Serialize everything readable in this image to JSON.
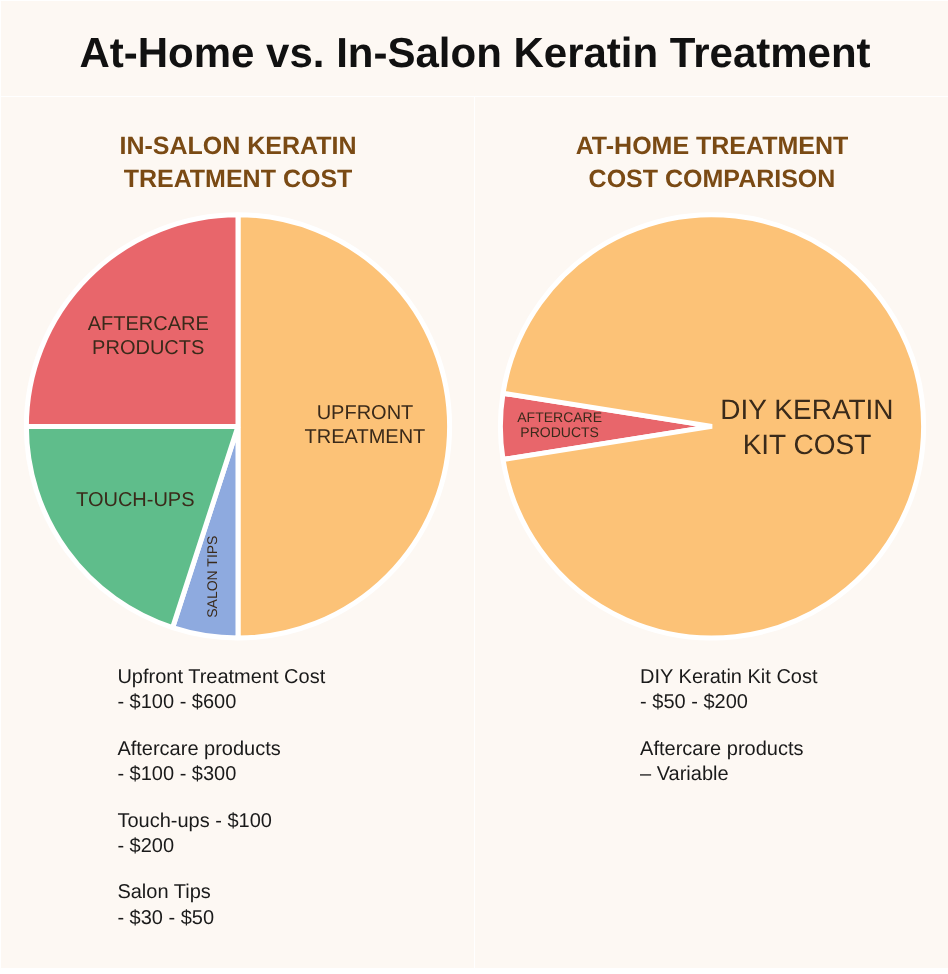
{
  "chart_data": [
    {
      "type": "pie",
      "title": "At-Home vs. In-Salon Keratin Treatment",
      "subtitle": "IN-SALON KERATIN\nTREATMENT COST",
      "categories": [
        "UPFRONT\nTREATMENT",
        "SALON TIPS",
        "TOUCH-UPS",
        "AFTERCARE\nPRODUCTS"
      ],
      "values": [
        50,
        5,
        20,
        25
      ],
      "colors": [
        "#fcc277",
        "#8eaadf",
        "#5fbd8b",
        "#e8666b"
      ],
      "annotations": [
        "Upfront Treatment Cost\n- $100 - $600",
        "Aftercare products\n - $100 - $300",
        "Touch-ups - $100\n- $200",
        "Salon Tips\n- $30 - $50"
      ]
    },
    {
      "type": "pie",
      "subtitle": "AT-HOME TREATMENT\nCOST COMPARISON",
      "categories": [
        "AFTERCARE\nPRODUCTS",
        "DIY KERATIN\nKIT COST"
      ],
      "values": [
        5,
        95
      ],
      "colors": [
        "#e8666b",
        "#fcc277"
      ],
      "annotations": [
        "DIY Keratin Kit Cost\n- $50 - $200",
        "Aftercare products\n– Variable"
      ]
    }
  ]
}
